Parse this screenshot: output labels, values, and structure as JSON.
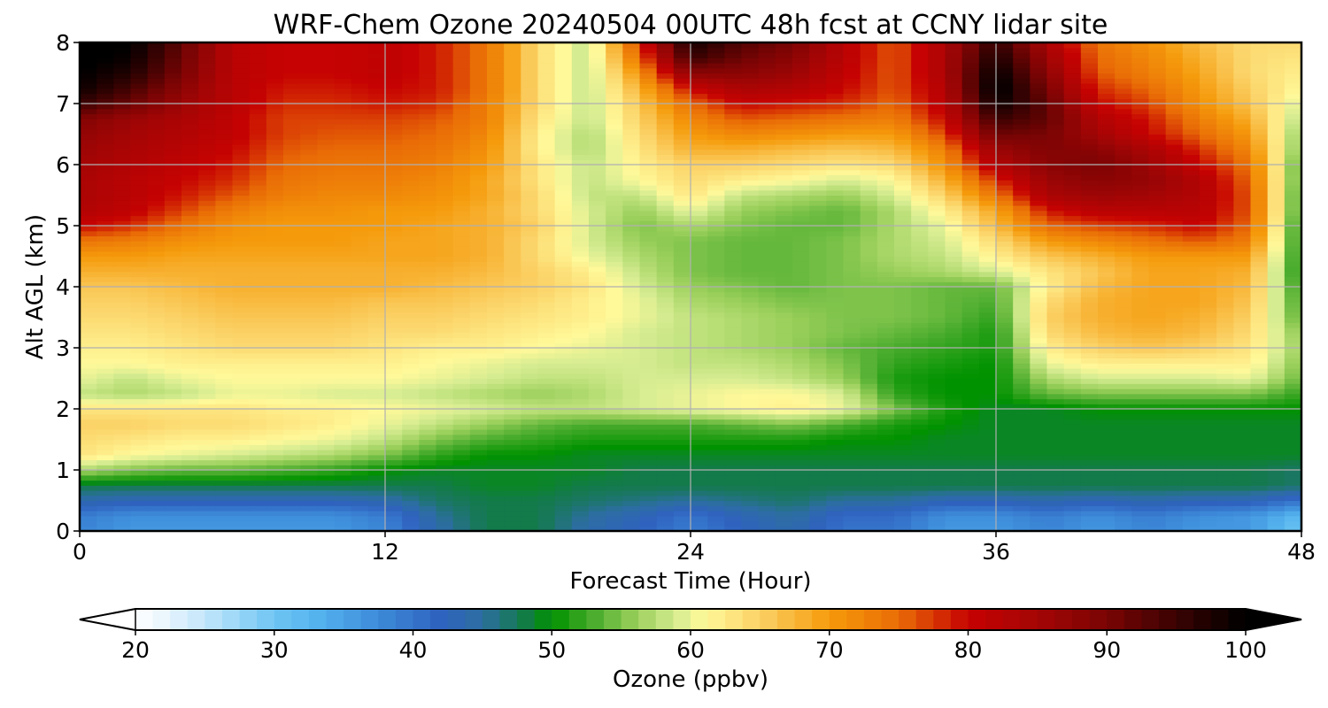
{
  "chart_data": {
    "type": "heatmap",
    "title": "WRF-Chem Ozone  20240504 00UTC 48h fcst at CCNY lidar site",
    "xlabel": "Forecast Time (Hour)",
    "ylabel": "Alt AGL (km)",
    "xlim": [
      0,
      48
    ],
    "ylim": [
      0,
      8
    ],
    "xticks": [
      0,
      12,
      24,
      36,
      48
    ],
    "xtick_labels": [
      "0",
      "12",
      "24",
      "36",
      "48"
    ],
    "yticks": [
      0,
      1,
      2,
      3,
      4,
      5,
      6,
      7,
      8
    ],
    "ytick_labels": [
      "0",
      "1",
      "2",
      "3",
      "4",
      "5",
      "6",
      "7",
      "8"
    ],
    "grid": true,
    "x": [
      0,
      2,
      4,
      6,
      8,
      10,
      12,
      14,
      16,
      18,
      20,
      22,
      24,
      26,
      28,
      30,
      32,
      34,
      36,
      38,
      40,
      42,
      44,
      46,
      48
    ],
    "y": [
      0,
      0.25,
      0.5,
      0.75,
      1,
      1.25,
      1.5,
      1.75,
      2,
      2.25,
      2.5,
      2.75,
      3,
      3.25,
      3.5,
      3.75,
      4,
      4.25,
      4.5,
      4.75,
      5,
      5.25,
      5.5,
      5.75,
      6,
      6.25,
      6.5,
      6.75,
      7,
      7.25,
      7.5,
      7.75,
      8
    ],
    "z": [
      [
        38,
        36,
        36,
        36,
        36,
        36,
        38,
        44,
        48,
        48,
        44,
        42,
        39,
        42,
        44,
        40,
        40,
        36,
        36,
        38,
        36,
        38,
        36,
        36,
        30
      ],
      [
        39,
        37,
        37,
        37,
        37,
        37,
        39,
        45,
        48,
        48,
        45,
        43,
        40,
        43,
        45,
        41,
        41,
        37,
        37,
        39,
        37,
        39,
        37,
        36,
        32
      ],
      [
        44,
        43,
        43,
        43,
        43,
        43,
        44,
        47,
        48,
        48,
        47,
        46,
        45,
        46,
        47,
        45,
        45,
        43,
        43,
        44,
        43,
        44,
        43,
        43,
        40
      ],
      [
        48,
        48,
        48,
        48,
        48,
        48,
        48,
        48,
        49,
        49,
        48,
        48,
        48,
        48,
        48,
        48,
        48,
        48,
        48,
        48,
        48,
        48,
        48,
        48,
        47
      ],
      [
        57,
        55,
        54,
        54,
        53,
        52,
        50,
        49,
        49,
        49,
        49,
        48,
        48,
        48,
        48,
        48,
        48,
        48,
        48,
        48,
        48,
        48,
        48,
        48,
        47
      ],
      [
        63,
        61,
        60,
        59,
        58,
        57,
        55,
        52,
        50,
        50,
        49,
        49,
        49,
        49,
        49,
        49,
        49,
        49,
        49,
        49,
        49,
        49,
        49,
        49,
        49
      ],
      [
        64,
        63,
        62,
        62,
        61,
        60,
        58,
        55,
        53,
        52,
        51,
        51,
        51,
        51,
        51,
        50,
        50,
        49,
        49,
        49,
        49,
        49,
        49,
        49,
        49
      ],
      [
        65,
        65,
        64,
        64,
        63,
        62,
        60,
        58,
        56,
        54,
        53,
        53,
        53,
        54,
        55,
        53,
        51,
        50,
        49,
        49,
        49,
        49,
        49,
        49,
        49
      ],
      [
        63,
        63,
        63,
        63,
        62,
        62,
        61,
        60,
        59,
        58,
        58,
        59,
        60,
        61,
        62,
        60,
        55,
        51,
        49,
        49,
        50,
        50,
        50,
        50,
        50
      ],
      [
        58,
        57,
        58,
        60,
        60,
        59,
        59,
        58,
        57,
        56,
        57,
        59,
        60,
        61,
        61,
        59,
        52,
        50,
        50,
        54,
        55,
        55,
        55,
        55,
        52
      ],
      [
        60,
        58,
        60,
        61,
        61,
        61,
        61,
        60,
        59,
        58,
        58,
        59,
        59,
        59,
        58,
        56,
        51,
        50,
        50,
        57,
        59,
        59,
        59,
        60,
        54
      ],
      [
        61,
        61,
        62,
        62,
        62,
        62,
        62,
        61,
        60,
        59,
        59,
        59,
        58,
        58,
        57,
        55,
        52,
        51,
        50,
        60,
        62,
        62,
        62,
        62,
        55
      ],
      [
        62,
        62,
        63,
        64,
        64,
        64,
        63,
        62,
        62,
        61,
        60,
        59,
        58,
        57,
        56,
        54,
        53,
        52,
        51,
        62,
        65,
        66,
        65,
        63,
        56
      ],
      [
        63,
        63,
        64,
        65,
        65,
        65,
        64,
        64,
        63,
        62,
        61,
        59,
        58,
        57,
        56,
        55,
        54,
        53,
        51,
        64,
        67,
        68,
        67,
        64,
        55
      ],
      [
        64,
        64,
        65,
        66,
        66,
        66,
        65,
        65,
        64,
        63,
        62,
        60,
        58,
        57,
        56,
        55,
        55,
        54,
        52,
        65,
        68,
        69,
        68,
        65,
        53
      ],
      [
        65,
        65,
        66,
        67,
        67,
        67,
        66,
        66,
        65,
        64,
        62,
        60,
        57,
        56,
        55,
        55,
        55,
        54,
        53,
        64,
        68,
        69,
        69,
        66,
        52
      ],
      [
        66,
        66,
        67,
        68,
        68,
        68,
        68,
        67,
        66,
        65,
        63,
        59,
        56,
        55,
        54,
        55,
        55,
        54,
        54,
        62,
        67,
        69,
        69,
        67,
        51
      ],
      [
        68,
        68,
        68,
        68,
        68,
        68,
        68,
        68,
        67,
        65,
        62,
        58,
        55,
        54,
        54,
        55,
        56,
        57,
        59,
        63,
        66,
        69,
        69,
        68,
        50
      ],
      [
        70,
        70,
        69,
        69,
        69,
        69,
        69,
        69,
        68,
        64,
        60,
        57,
        55,
        54,
        54,
        55,
        57,
        58,
        62,
        66,
        68,
        70,
        70,
        70,
        50
      ],
      [
        74,
        73,
        71,
        70,
        70,
        70,
        69,
        69,
        68,
        64,
        59,
        56,
        55,
        54,
        54,
        55,
        57,
        59,
        64,
        70,
        72,
        74,
        76,
        73,
        50
      ],
      [
        80,
        78,
        74,
        71,
        70,
        70,
        70,
        69,
        68,
        65,
        59,
        55,
        57,
        55,
        54,
        54,
        57,
        60,
        67,
        75,
        77,
        78,
        80,
        75,
        50
      ],
      [
        83,
        81,
        77,
        73,
        71,
        71,
        70,
        70,
        68,
        64,
        59,
        56,
        60,
        56,
        55,
        54,
        57,
        62,
        69,
        79,
        82,
        82,
        82,
        76,
        51
      ],
      [
        84,
        82,
        79,
        76,
        73,
        72,
        72,
        71,
        69,
        64,
        58,
        58,
        63,
        58,
        57,
        56,
        59,
        65,
        74,
        84,
        86,
        85,
        83,
        76,
        51
      ],
      [
        84,
        82,
        80,
        78,
        74,
        73,
        73,
        72,
        69,
        63,
        58,
        61,
        64,
        62,
        61,
        59,
        61,
        68,
        78,
        86,
        88,
        87,
        83,
        75,
        52
      ],
      [
        85,
        83,
        81,
        79,
        75,
        74,
        74,
        73,
        70,
        63,
        58,
        62,
        65,
        65,
        64,
        63,
        64,
        71,
        83,
        88,
        90,
        86,
        80,
        74,
        52
      ],
      [
        86,
        84,
        82,
        80,
        76,
        75,
        75,
        74,
        71,
        62,
        57,
        63,
        68,
        68,
        67,
        66,
        67,
        73,
        86,
        89,
        88,
        84,
        78,
        72,
        54
      ],
      [
        87,
        85,
        83,
        81,
        77,
        76,
        76,
        75,
        72,
        62,
        57,
        64,
        70,
        72,
        71,
        70,
        70,
        77,
        91,
        90,
        85,
        80,
        75,
        70,
        55
      ],
      [
        89,
        86,
        84,
        81,
        77,
        77,
        77,
        76,
        73,
        63,
        58,
        65,
        72,
        76,
        75,
        74,
        73,
        80,
        95,
        92,
        83,
        79,
        73,
        68,
        57
      ],
      [
        95,
        91,
        86,
        82,
        78,
        78,
        79,
        78,
        73,
        64,
        58,
        66,
        75,
        80,
        79,
        78,
        75,
        82,
        99,
        92,
        80,
        77,
        71,
        66,
        59
      ],
      [
        99,
        94,
        88,
        82,
        79,
        79,
        80,
        79,
        74,
        64,
        58,
        68,
        80,
        84,
        83,
        80,
        76,
        83,
        101,
        90,
        78,
        75,
        70,
        65,
        61
      ],
      [
        100,
        97,
        90,
        82,
        80,
        80,
        81,
        79,
        74,
        64,
        58,
        71,
        88,
        88,
        86,
        81,
        76,
        84,
        100,
        88,
        76,
        73,
        69,
        64,
        62
      ],
      [
        101,
        99,
        91,
        82,
        80,
        80,
        81,
        79,
        74,
        64,
        58,
        75,
        95,
        91,
        88,
        82,
        76,
        84,
        98,
        86,
        75,
        72,
        68,
        64,
        63
      ],
      [
        101,
        100,
        92,
        82,
        80,
        80,
        81,
        79,
        74,
        64,
        58,
        78,
        98,
        93,
        90,
        82,
        76,
        84,
        96,
        84,
        74,
        71,
        67,
        64,
        64
      ]
    ],
    "colorbar": {
      "label": "Ozone  (ppbv)",
      "min": 20,
      "max": 100,
      "ticks": [
        20,
        30,
        40,
        50,
        60,
        70,
        80,
        90,
        100
      ],
      "tick_labels": [
        "20",
        "30",
        "40",
        "50",
        "60",
        "70",
        "80",
        "90",
        "100"
      ],
      "extend": "both",
      "extend_min_color": "#ffffff",
      "extend_max_color": "#000000",
      "stops": [
        {
          "v": 20,
          "c": "#ffffff"
        },
        {
          "v": 22,
          "c": "#eaf5fd"
        },
        {
          "v": 25,
          "c": "#c3e6fa"
        },
        {
          "v": 30,
          "c": "#6ec5f3"
        },
        {
          "v": 33,
          "c": "#55b4ee"
        },
        {
          "v": 37,
          "c": "#3f8fdc"
        },
        {
          "v": 42,
          "c": "#2f62bf"
        },
        {
          "v": 45,
          "c": "#2c6ea0"
        },
        {
          "v": 48,
          "c": "#137a4a"
        },
        {
          "v": 50,
          "c": "#019200"
        },
        {
          "v": 53,
          "c": "#4aac2d"
        },
        {
          "v": 56,
          "c": "#99cf5a"
        },
        {
          "v": 59,
          "c": "#d6ec91"
        },
        {
          "v": 61,
          "c": "#fff99a"
        },
        {
          "v": 65,
          "c": "#fbd165"
        },
        {
          "v": 70,
          "c": "#f59a0b"
        },
        {
          "v": 75,
          "c": "#e96c06"
        },
        {
          "v": 80,
          "c": "#c60202"
        },
        {
          "v": 85,
          "c": "#a40505"
        },
        {
          "v": 90,
          "c": "#7a0404"
        },
        {
          "v": 95,
          "c": "#3a0202"
        },
        {
          "v": 100,
          "c": "#000000"
        }
      ]
    }
  }
}
